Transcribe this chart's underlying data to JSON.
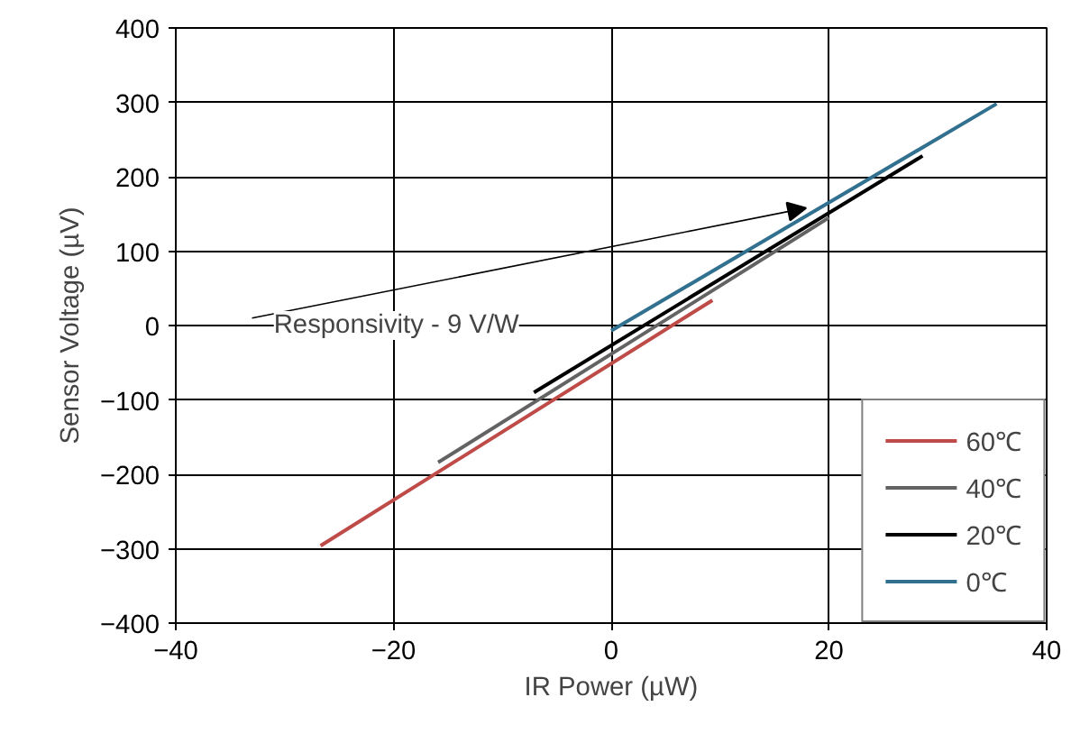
{
  "chart_data": {
    "type": "line",
    "xlabel": "IR Power (µW)",
    "ylabel": "Sensor Voltage (µV)",
    "xlim": [
      -40,
      40
    ],
    "ylim": [
      -400,
      400
    ],
    "xticks": [
      {
        "value": -40,
        "label": "−40"
      },
      {
        "value": -20,
        "label": "−20"
      },
      0,
      20,
      40
    ],
    "yticks": [
      {
        "value": -400,
        "label": "−400"
      },
      {
        "value": -300,
        "label": "−300"
      },
      {
        "value": -200,
        "label": "−200"
      },
      {
        "value": -100,
        "label": "−100"
      },
      0,
      100,
      200,
      300,
      400
    ],
    "grid": true,
    "legend": "bottom right",
    "line_style": "solid",
    "marker": "none",
    "annotations": [
      {
        "text": "Responsivity - 9 V/W",
        "x": 17.9,
        "y": 158
      }
    ],
    "series": [
      {
        "name": "60℃",
        "color": "#be4b48",
        "x": [
          -26.7,
          9.3
        ],
        "values": [
          -296,
          34
        ]
      },
      {
        "name": "40℃",
        "color": "#636363",
        "x": [
          -15.9,
          20
        ],
        "values": [
          -184,
          145
        ]
      },
      {
        "name": "20℃",
        "color": "#000000",
        "x": [
          -7.1,
          28.6
        ],
        "values": [
          -90,
          228
        ]
      },
      {
        "name": "0℃",
        "color": "#31708f",
        "x": [
          0,
          35.4
        ],
        "values": [
          -7,
          298
        ]
      }
    ]
  }
}
